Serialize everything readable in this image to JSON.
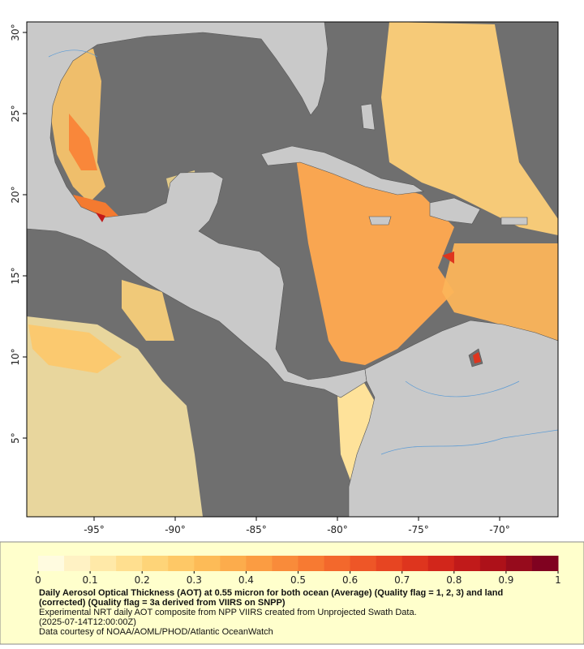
{
  "map": {
    "xlim": [
      -99.15,
      -66.4
    ],
    "ylim": [
      0.15,
      30.65
    ],
    "xticks": [
      {
        "value": -95,
        "label": "-95°"
      },
      {
        "value": -90,
        "label": "-90°"
      },
      {
        "value": -85,
        "label": "-85°"
      },
      {
        "value": -80,
        "label": "-80°"
      },
      {
        "value": -75,
        "label": "-75°"
      },
      {
        "value": -70,
        "label": "-70°"
      }
    ],
    "yticks": [
      {
        "value": 5,
        "label": "5°"
      },
      {
        "value": 10,
        "label": "10°"
      },
      {
        "value": 15,
        "label": "15°"
      },
      {
        "value": 20,
        "label": "20°"
      },
      {
        "value": 25,
        "label": "25°"
      },
      {
        "value": 30,
        "label": "30°"
      }
    ]
  },
  "colorbar": {
    "lim": [
      0,
      1
    ],
    "ticks": [
      0,
      0.1,
      0.2,
      0.3,
      0.4,
      0.5,
      0.6,
      0.7,
      0.8,
      0.9,
      1
    ],
    "colors": [
      "#fffbe0",
      "#fff2c4",
      "#ffe9a8",
      "#ffdf8f",
      "#fed478",
      "#fec866",
      "#fdbb57",
      "#fcac4c",
      "#fb9c42",
      "#f98b3a",
      "#f77a32",
      "#f3682c",
      "#ee5627",
      "#e74522",
      "#de351e",
      "#d2261b",
      "#c11a1a",
      "#ad1119",
      "#960b1c",
      "#800220"
    ]
  },
  "caption": {
    "title": "Daily Aerosol Optical Thickness (AOT) at 0.55 micron for both ocean (Average) (Quality flag = 1, 2, 3) and land (corrected) (Quality flag = 3a derived from VIIRS on SNPP)",
    "lines": [
      "Experimental NRT daily AOT composite from NPP VIIRS created from Unprojected Swath Data.",
      "(2025-07-14T12:00:00Z)",
      "Data courtesy of NOAA/AOML/PHOD/Atlantic OceanWatch"
    ]
  }
}
